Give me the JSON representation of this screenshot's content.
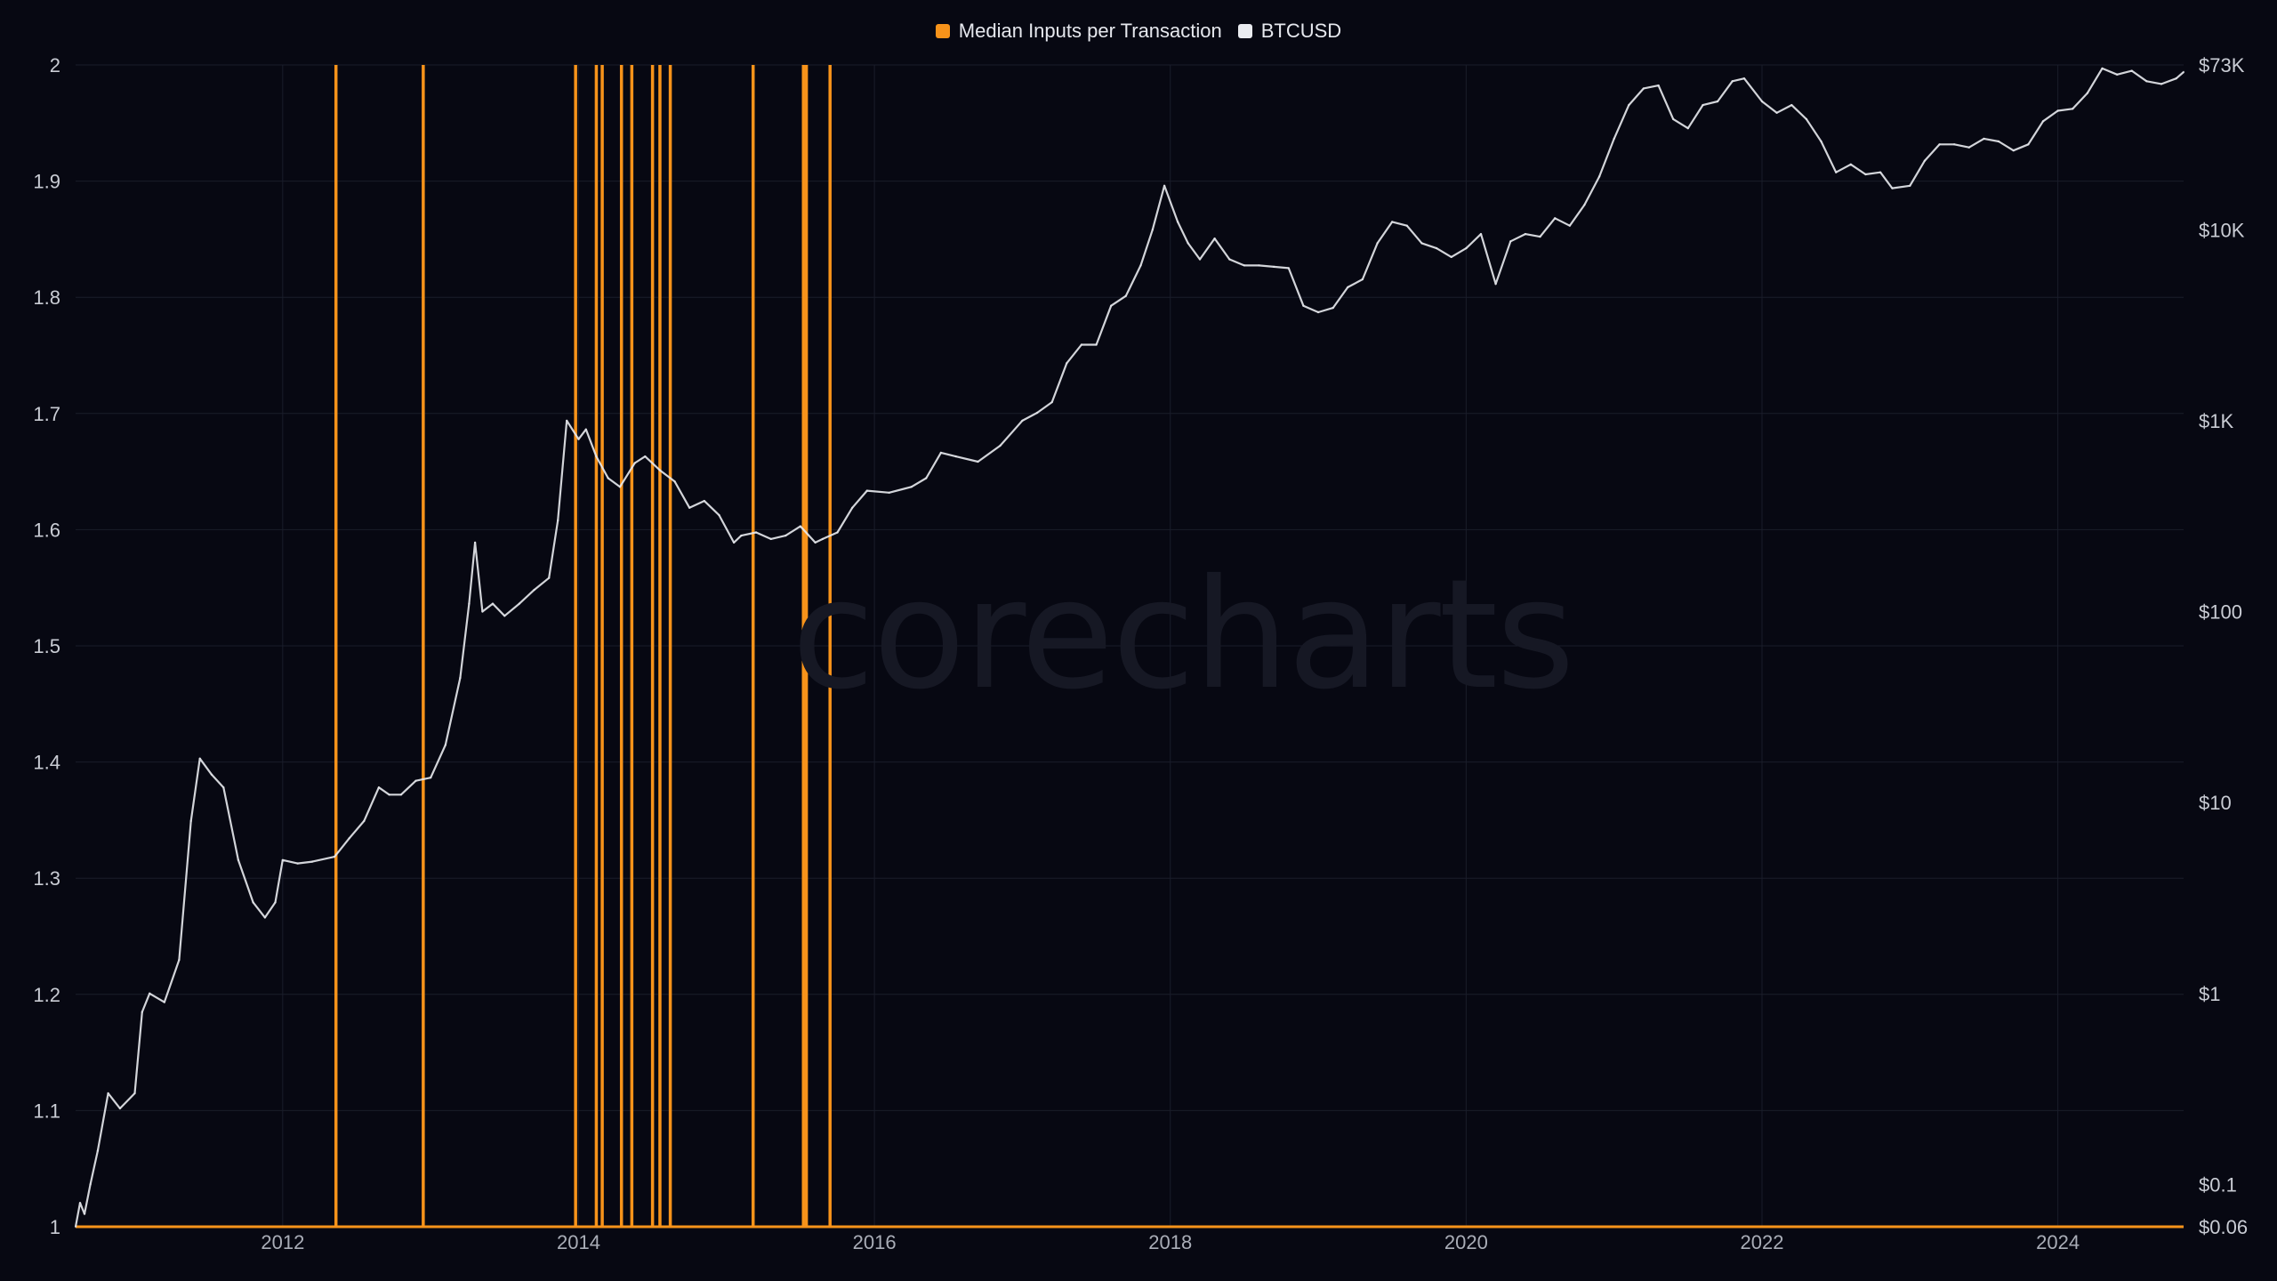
{
  "legend": {
    "series1_label": "Median Inputs per Transaction",
    "series2_label": "BTCUSD",
    "series1_color": "#f7931a",
    "series2_color": "#e9ebf0"
  },
  "watermark": {
    "word1": "core",
    "word2": "charts"
  },
  "chart_data": {
    "type": "line",
    "x_range": [
      2010.6,
      2024.85
    ],
    "x_ticks": [
      "2012",
      "2014",
      "2016",
      "2018",
      "2020",
      "2022",
      "2024"
    ],
    "x_tick_values": [
      2012,
      2014,
      2016,
      2018,
      2020,
      2022,
      2024
    ],
    "left_axis": {
      "ylim": [
        1,
        2
      ],
      "ticks": [
        "2",
        "1.9",
        "1.8",
        "1.7",
        "1.6",
        "1.5",
        "1.4",
        "1.3",
        "1.2",
        "1.1",
        "1"
      ],
      "tick_values": [
        2,
        1.9,
        1.8,
        1.7,
        1.6,
        1.5,
        1.4,
        1.3,
        1.2,
        1.1,
        1
      ]
    },
    "right_axis": {
      "scale": "log",
      "ylim": [
        0.06,
        73000
      ],
      "ticks": [
        "$73K",
        "$10K",
        "$1K",
        "$100",
        "$10",
        "$1",
        "$0.1",
        "$0.06"
      ],
      "tick_values": [
        73000,
        10000,
        1000,
        100,
        10,
        1,
        0.1,
        0.06
      ]
    },
    "grid": true,
    "legend_position": "top-center",
    "series": [
      {
        "name": "Median Inputs per Transaction",
        "color": "#f7931a",
        "baseline": 1,
        "spike_value": 2,
        "spikes_x": [
          2012.36,
          2012.95,
          2013.98,
          2014.12,
          2014.16,
          2014.29,
          2014.36,
          2014.5,
          2014.55,
          2014.62,
          2015.18,
          2015.52,
          2015.54,
          2015.7
        ]
      },
      {
        "name": "BTCUSD",
        "color": "#e9ebf0",
        "x": [
          2010.6,
          2010.63,
          2010.66,
          2010.7,
          2010.75,
          2010.82,
          2010.9,
          2011.0,
          2011.05,
          2011.1,
          2011.2,
          2011.3,
          2011.38,
          2011.44,
          2011.52,
          2011.6,
          2011.7,
          2011.8,
          2011.88,
          2011.95,
          2012.0,
          2012.1,
          2012.2,
          2012.35,
          2012.45,
          2012.55,
          2012.65,
          2012.72,
          2012.8,
          2012.9,
          2013.0,
          2013.1,
          2013.2,
          2013.26,
          2013.3,
          2013.35,
          2013.42,
          2013.5,
          2013.6,
          2013.7,
          2013.8,
          2013.86,
          2013.92,
          2014.0,
          2014.05,
          2014.12,
          2014.2,
          2014.28,
          2014.38,
          2014.45,
          2014.55,
          2014.65,
          2014.75,
          2014.85,
          2014.95,
          2015.05,
          2015.1,
          2015.2,
          2015.3,
          2015.4,
          2015.5,
          2015.6,
          2015.65,
          2015.75,
          2015.85,
          2015.95,
          2016.1,
          2016.25,
          2016.35,
          2016.45,
          2016.55,
          2016.7,
          2016.85,
          2017.0,
          2017.1,
          2017.2,
          2017.3,
          2017.4,
          2017.5,
          2017.6,
          2017.7,
          2017.8,
          2017.88,
          2017.96,
          2018.05,
          2018.12,
          2018.2,
          2018.3,
          2018.4,
          2018.5,
          2018.6,
          2018.7,
          2018.8,
          2018.9,
          2019.0,
          2019.1,
          2019.2,
          2019.3,
          2019.4,
          2019.5,
          2019.6,
          2019.7,
          2019.8,
          2019.9,
          2020.0,
          2020.1,
          2020.2,
          2020.3,
          2020.4,
          2020.5,
          2020.6,
          2020.7,
          2020.8,
          2020.9,
          2021.0,
          2021.1,
          2021.2,
          2021.3,
          2021.4,
          2021.5,
          2021.6,
          2021.7,
          2021.8,
          2021.88,
          2022.0,
          2022.1,
          2022.2,
          2022.3,
          2022.4,
          2022.5,
          2022.6,
          2022.7,
          2022.8,
          2022.88,
          2023.0,
          2023.1,
          2023.2,
          2023.3,
          2023.4,
          2023.5,
          2023.6,
          2023.7,
          2023.8,
          2023.9,
          2024.0,
          2024.1,
          2024.2,
          2024.3,
          2024.4,
          2024.5,
          2024.6,
          2024.7,
          2024.8,
          2024.85
        ],
        "values": [
          0.06,
          0.08,
          0.07,
          0.1,
          0.15,
          0.3,
          0.25,
          0.3,
          0.8,
          1.0,
          0.9,
          1.5,
          8.0,
          17.0,
          14.0,
          12.0,
          5.0,
          3.0,
          2.5,
          3.0,
          5.0,
          4.8,
          4.9,
          5.2,
          6.5,
          8.0,
          12.0,
          11.0,
          11.0,
          13.0,
          13.5,
          20.0,
          45.0,
          110.0,
          230.0,
          100.0,
          110.0,
          95.0,
          110.0,
          130.0,
          150.0,
          300.0,
          1000.0,
          800.0,
          900.0,
          650.0,
          500.0,
          450.0,
          600.0,
          650.0,
          550.0,
          480.0,
          350.0,
          380.0,
          320.0,
          230.0,
          250.0,
          260.0,
          240.0,
          250.0,
          280.0,
          230.0,
          240.0,
          260.0,
          350.0,
          430.0,
          420.0,
          450.0,
          500.0,
          680.0,
          650.0,
          610.0,
          740.0,
          1000.0,
          1100.0,
          1250.0,
          2000.0,
          2500.0,
          2500.0,
          4000.0,
          4500.0,
          6500.0,
          10000.0,
          17000.0,
          11000.0,
          8500.0,
          7000.0,
          9000.0,
          7000.0,
          6500.0,
          6500.0,
          6400.0,
          6300.0,
          4000.0,
          3700.0,
          3900.0,
          5000.0,
          5500.0,
          8500.0,
          11000.0,
          10500.0,
          8500.0,
          8000.0,
          7200.0,
          8000.0,
          9500.0,
          5200.0,
          8700.0,
          9500.0,
          9200.0,
          11500.0,
          10500.0,
          13500.0,
          19000.0,
          30000.0,
          45000.0,
          55000.0,
          57000.0,
          38000.0,
          34000.0,
          45000.0,
          47000.0,
          60000.0,
          62000.0,
          47000.0,
          41000.0,
          45000.0,
          38000.0,
          29000.0,
          20000.0,
          22000.0,
          19500.0,
          20000.0,
          16500.0,
          17000.0,
          23000.0,
          28000.0,
          28000.0,
          27000.0,
          30000.0,
          29000.0,
          26000.0,
          28000.0,
          37000.0,
          42000.0,
          43000.0,
          52000.0,
          70000.0,
          65000.0,
          68000.0,
          60000.0,
          58000.0,
          62000.0,
          67000.0
        ]
      }
    ]
  }
}
